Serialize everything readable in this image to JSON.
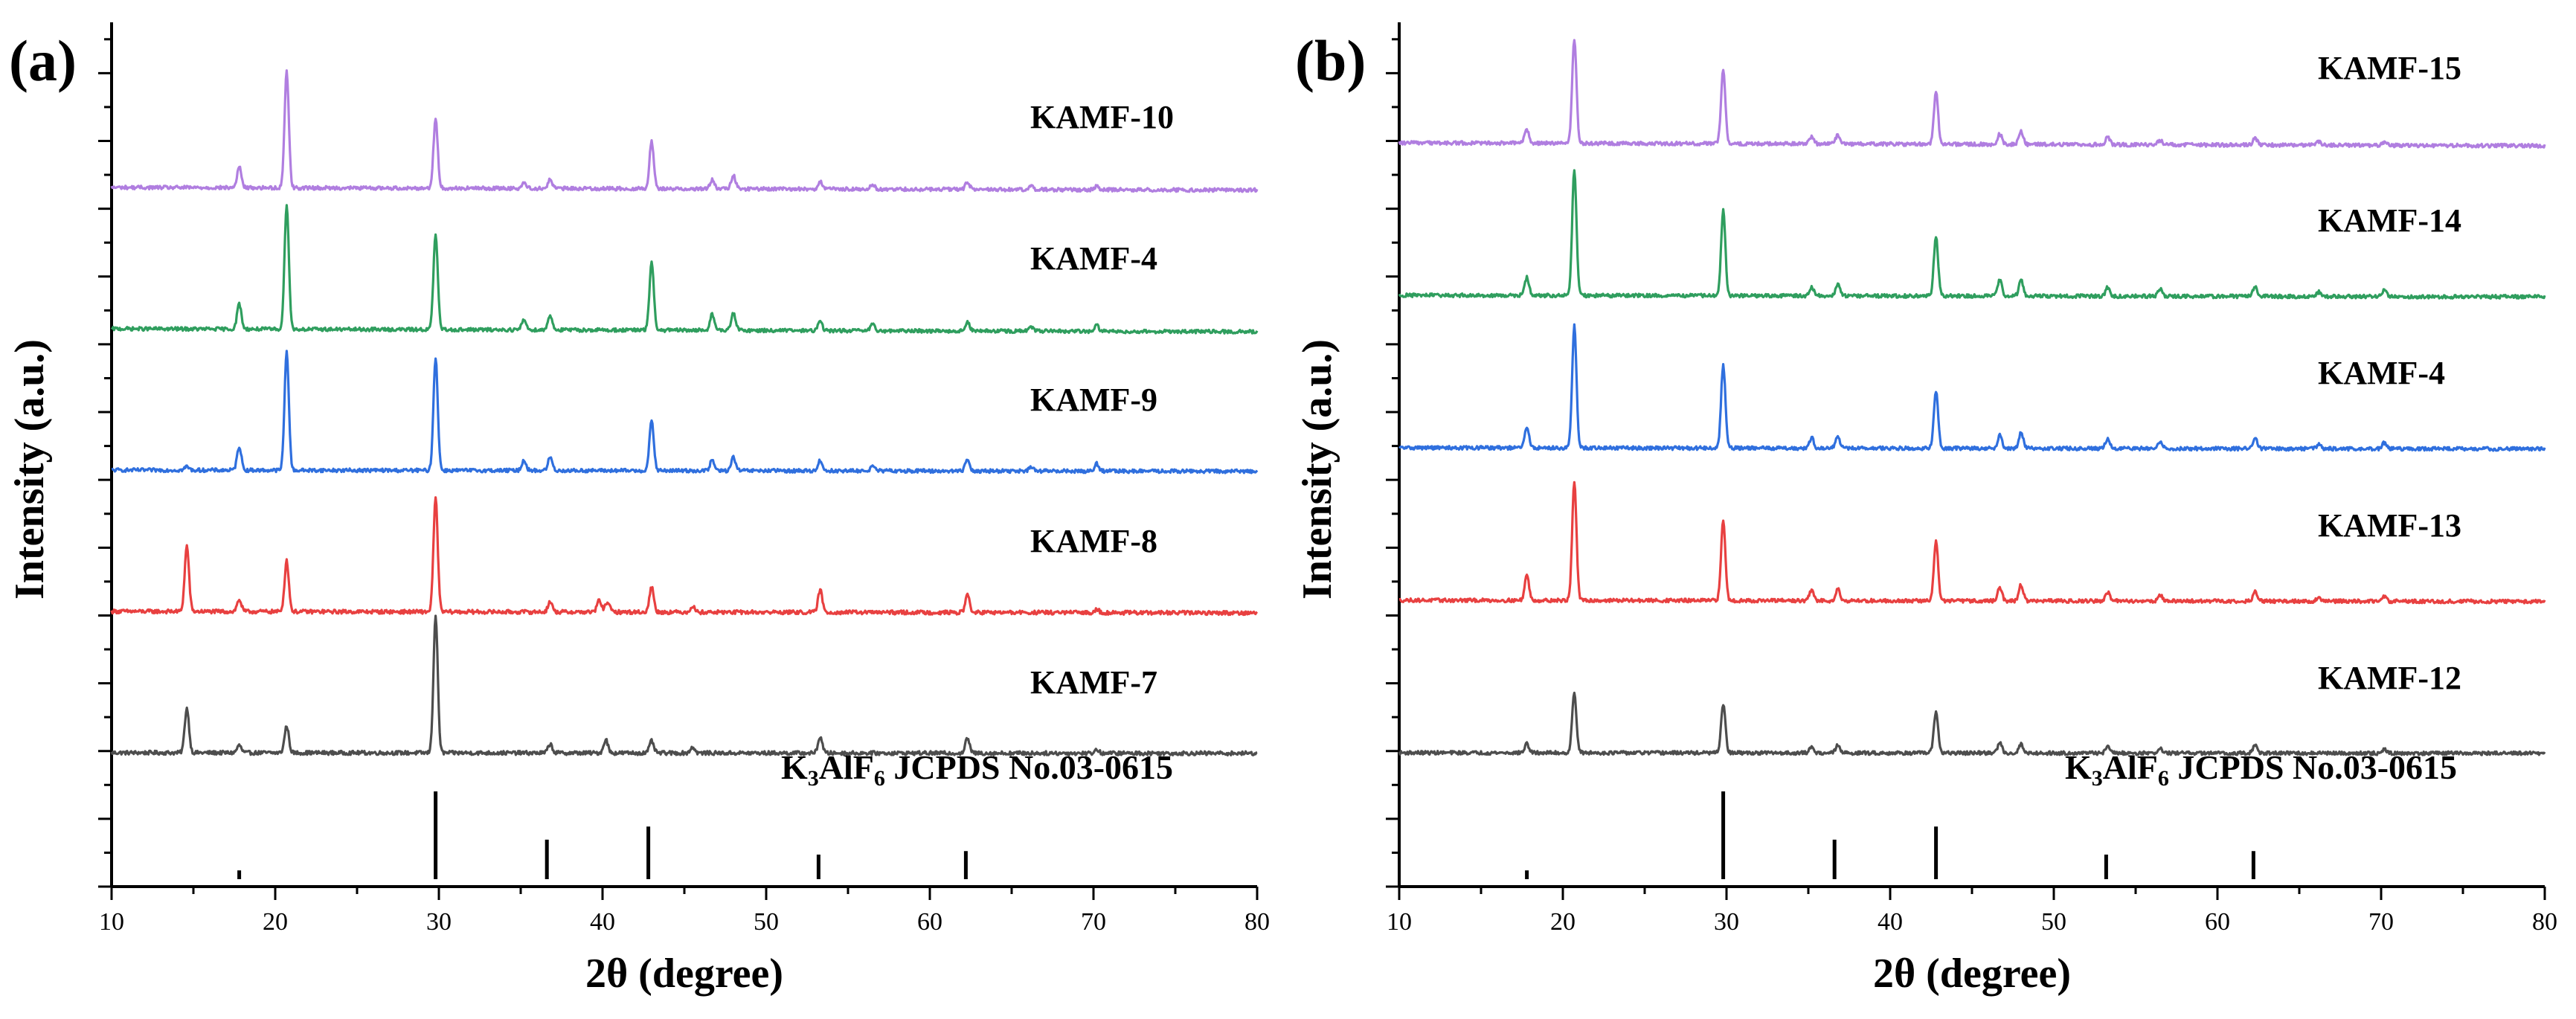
{
  "chart_data": [
    {
      "type": "line",
      "panel_label": "(a)",
      "xlabel": "2θ (degree)",
      "ylabel": "Intensity (a.u.)",
      "xlim": [
        10,
        80
      ],
      "xticks": [
        10,
        20,
        30,
        40,
        50,
        60,
        70,
        80
      ],
      "y_tick_labels": "none",
      "legend": "text labels beside each curve, right side",
      "grid": false,
      "reference": {
        "label_main": "K",
        "label_sub1": "3",
        "label_mid": "AlF",
        "label_sub2": "6",
        "label_tail": "  JCPDS No.03-0615",
        "sticks": [
          {
            "x": 17.8,
            "h": 0.1
          },
          {
            "x": 29.8,
            "h": 1.0
          },
          {
            "x": 36.6,
            "h": 0.45
          },
          {
            "x": 42.8,
            "h": 0.6
          },
          {
            "x": 53.2,
            "h": 0.28
          },
          {
            "x": 62.2,
            "h": 0.32
          }
        ]
      },
      "series": [
        {
          "name": "KAMF-7",
          "color": "#4d4d4d",
          "offset": 0,
          "slope": 0.02,
          "noise": 0.22,
          "peaks": [
            [
              14.6,
              1.5
            ],
            [
              17.8,
              0.25
            ],
            [
              20.7,
              0.9
            ],
            [
              29.8,
              4.6
            ],
            [
              36.8,
              0.3
            ],
            [
              40.2,
              0.45
            ],
            [
              43.0,
              0.4
            ],
            [
              45.5,
              0.2
            ],
            [
              53.3,
              0.55
            ],
            [
              62.3,
              0.5
            ],
            [
              70.2,
              0.12
            ]
          ]
        },
        {
          "name": "KAMF-8",
          "color": "#e84040",
          "offset": 1,
          "slope": 0.05,
          "noise": 0.22,
          "peaks": [
            [
              14.6,
              2.2
            ],
            [
              17.8,
              0.4
            ],
            [
              20.7,
              1.7
            ],
            [
              29.8,
              3.8
            ],
            [
              36.8,
              0.35
            ],
            [
              39.8,
              0.4
            ],
            [
              40.3,
              0.35
            ],
            [
              43.0,
              0.85
            ],
            [
              45.5,
              0.2
            ],
            [
              53.3,
              0.75
            ],
            [
              62.3,
              0.6
            ],
            [
              70.2,
              0.12
            ]
          ]
        },
        {
          "name": "KAMF-9",
          "color": "#2f6fde",
          "offset": 2,
          "slope": 0.04,
          "noise": 0.2,
          "peaks": [
            [
              14.6,
              0.12
            ],
            [
              17.8,
              0.8
            ],
            [
              20.7,
              4.0
            ],
            [
              29.8,
              3.8
            ],
            [
              35.2,
              0.35
            ],
            [
              36.8,
              0.45
            ],
            [
              43.0,
              1.7
            ],
            [
              46.7,
              0.35
            ],
            [
              48.0,
              0.45
            ],
            [
              53.3,
              0.35
            ],
            [
              56.5,
              0.15
            ],
            [
              62.3,
              0.4
            ],
            [
              66.2,
              0.12
            ],
            [
              70.2,
              0.25
            ]
          ]
        },
        {
          "name": "KAMF-4",
          "color": "#2f9e5e",
          "offset": 3,
          "slope": 0.1,
          "noise": 0.2,
          "peaks": [
            [
              17.8,
              0.85
            ],
            [
              20.7,
              4.2
            ],
            [
              29.8,
              3.2
            ],
            [
              35.2,
              0.35
            ],
            [
              36.8,
              0.5
            ],
            [
              43.0,
              2.3
            ],
            [
              46.7,
              0.55
            ],
            [
              48.0,
              0.6
            ],
            [
              53.3,
              0.3
            ],
            [
              56.5,
              0.2
            ],
            [
              62.3,
              0.3
            ],
            [
              66.2,
              0.15
            ],
            [
              70.2,
              0.2
            ]
          ]
        },
        {
          "name": "KAMF-10",
          "color": "#b07ee0",
          "offset": 4,
          "slope": 0.09,
          "noise": 0.2,
          "peaks": [
            [
              17.8,
              0.7
            ],
            [
              20.7,
              3.9
            ],
            [
              29.8,
              2.3
            ],
            [
              35.2,
              0.2
            ],
            [
              36.8,
              0.3
            ],
            [
              43.0,
              1.6
            ],
            [
              46.7,
              0.3
            ],
            [
              48.0,
              0.45
            ],
            [
              53.3,
              0.25
            ],
            [
              56.5,
              0.15
            ],
            [
              62.3,
              0.25
            ],
            [
              66.2,
              0.12
            ],
            [
              70.2,
              0.12
            ]
          ]
        }
      ]
    },
    {
      "type": "line",
      "panel_label": "(b)",
      "xlabel": "2θ (degree)",
      "ylabel": "Intensity (a.u.)",
      "xlim": [
        10,
        80
      ],
      "xticks": [
        10,
        20,
        30,
        40,
        50,
        60,
        70,
        80
      ],
      "y_tick_labels": "none",
      "legend": "text labels beside each curve, right side",
      "grid": false,
      "reference": {
        "label_main": "K",
        "label_sub1": "3",
        "label_mid": "AlF",
        "label_sub2": "6",
        "label_tail": "  JCPDS No.03-0615",
        "sticks": [
          {
            "x": 17.8,
            "h": 0.1
          },
          {
            "x": 29.8,
            "h": 1.0
          },
          {
            "x": 36.6,
            "h": 0.45
          },
          {
            "x": 42.8,
            "h": 0.6
          },
          {
            "x": 53.2,
            "h": 0.28
          },
          {
            "x": 62.2,
            "h": 0.32
          }
        ]
      },
      "series": [
        {
          "name": "KAMF-12",
          "color": "#4d4d4d",
          "offset": 0,
          "slope": 0.02,
          "noise": 0.2,
          "peaks": [
            [
              17.8,
              0.3
            ],
            [
              20.7,
              2.0
            ],
            [
              29.8,
              1.65
            ],
            [
              35.2,
              0.2
            ],
            [
              36.8,
              0.25
            ],
            [
              42.8,
              1.4
            ],
            [
              46.7,
              0.35
            ],
            [
              48.0,
              0.3
            ],
            [
              53.3,
              0.25
            ],
            [
              56.5,
              0.15
            ],
            [
              62.3,
              0.25
            ],
            [
              70.2,
              0.12
            ]
          ]
        },
        {
          "name": "KAMF-13",
          "color": "#e84040",
          "offset": 1,
          "slope": 0.04,
          "noise": 0.2,
          "peaks": [
            [
              17.8,
              0.85
            ],
            [
              20.7,
              4.0
            ],
            [
              29.8,
              2.7
            ],
            [
              35.2,
              0.35
            ],
            [
              36.8,
              0.4
            ],
            [
              42.8,
              2.0
            ],
            [
              46.7,
              0.45
            ],
            [
              48.0,
              0.55
            ],
            [
              53.3,
              0.3
            ],
            [
              56.5,
              0.2
            ],
            [
              62.3,
              0.3
            ],
            [
              66.2,
              0.12
            ],
            [
              70.2,
              0.15
            ]
          ]
        },
        {
          "name": "KAMF-4",
          "color": "#2f6fde",
          "offset": 2,
          "slope": 0.04,
          "noise": 0.2,
          "peaks": [
            [
              17.8,
              0.7
            ],
            [
              20.7,
              4.1
            ],
            [
              29.8,
              2.8
            ],
            [
              35.2,
              0.35
            ],
            [
              36.8,
              0.4
            ],
            [
              42.8,
              1.95
            ],
            [
              46.7,
              0.45
            ],
            [
              48.0,
              0.55
            ],
            [
              53.3,
              0.35
            ],
            [
              56.5,
              0.25
            ],
            [
              62.3,
              0.35
            ],
            [
              66.2,
              0.15
            ],
            [
              70.2,
              0.2
            ]
          ]
        },
        {
          "name": "KAMF-14",
          "color": "#2f9e5e",
          "offset": 3,
          "slope": 0.05,
          "noise": 0.2,
          "peaks": [
            [
              17.8,
              0.6
            ],
            [
              20.7,
              4.2
            ],
            [
              29.8,
              2.85
            ],
            [
              35.2,
              0.3
            ],
            [
              36.8,
              0.4
            ],
            [
              42.8,
              2.0
            ],
            [
              46.7,
              0.55
            ],
            [
              48.0,
              0.55
            ],
            [
              53.3,
              0.3
            ],
            [
              56.5,
              0.25
            ],
            [
              62.3,
              0.35
            ],
            [
              66.2,
              0.15
            ],
            [
              70.2,
              0.2
            ]
          ]
        },
        {
          "name": "KAMF-15",
          "color": "#b07ee0",
          "offset": 4,
          "slope": 0.1,
          "noise": 0.2,
          "peaks": [
            [
              17.8,
              0.45
            ],
            [
              20.7,
              3.5
            ],
            [
              29.8,
              2.5
            ],
            [
              35.2,
              0.25
            ],
            [
              36.8,
              0.3
            ],
            [
              42.8,
              1.75
            ],
            [
              46.7,
              0.35
            ],
            [
              48.0,
              0.45
            ],
            [
              53.3,
              0.25
            ],
            [
              56.5,
              0.15
            ],
            [
              62.3,
              0.25
            ],
            [
              66.2,
              0.12
            ],
            [
              70.2,
              0.12
            ]
          ]
        }
      ]
    }
  ]
}
